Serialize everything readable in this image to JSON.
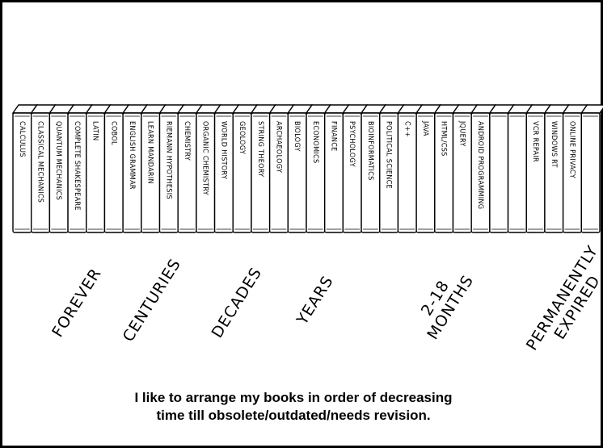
{
  "books": [
    "CALCULUS",
    "CLASSICAL MECHANICS",
    "QUANTUM MECHANICS",
    "COMPLETE SHAKESPEARE",
    "LATIN",
    "COBOL",
    "ENGLISH GRAMMAR",
    "LEARN MANDARIN",
    "RIEMANN HYPOTHESIS",
    "CHEMISTRY",
    "ORGANIC CHEMISTRY",
    "WORLD HISTORY",
    "GEOLOGY",
    "STRING THEORY",
    "ARCHAEOLOGY",
    "BIOLOGY",
    "ECONOMICS",
    "FINANCE",
    "PSYCHOLOGY",
    "BIOINFORMATICS",
    "POLITICAL SCIENCE",
    "C++",
    "JAVA",
    "HTML/CSS",
    "JQUERY",
    "ANDROID PROGRAMMING",
    null,
    null,
    "VCR REPAIR",
    "WINDOWS RT",
    "ONLINE PRIVACY",
    null
  ],
  "groups": [
    [
      "FOREVER"
    ],
    [
      "CENTURIES"
    ],
    [
      "DECADES"
    ],
    [
      "YEARS"
    ],
    [
      "2-18",
      "MONTHS"
    ],
    [
      "PERMANENTLY",
      "EXPIRED"
    ]
  ],
  "caption": [
    "I like to arrange my books in order of decreasing",
    "time till obsolete/outdated/needs revision."
  ]
}
